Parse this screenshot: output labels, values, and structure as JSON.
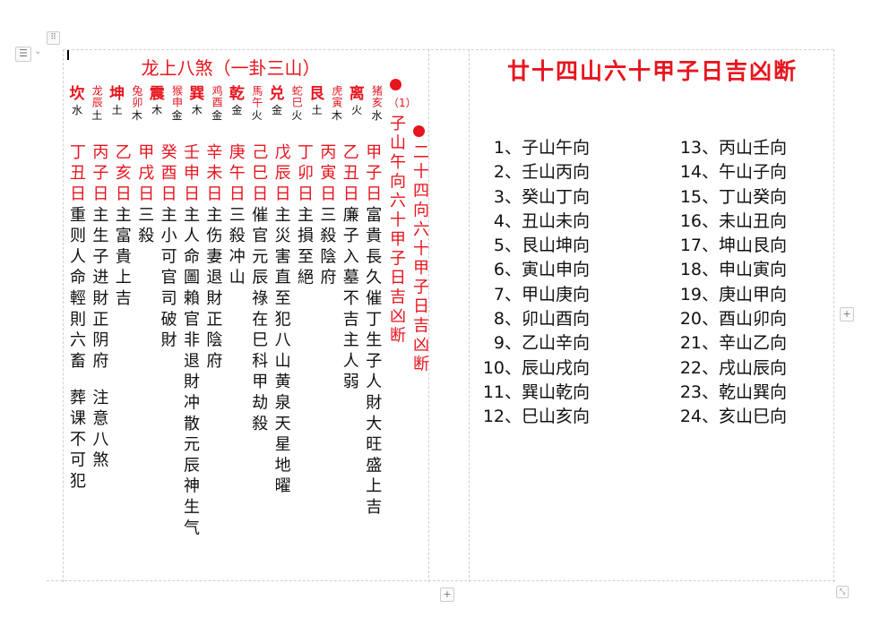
{
  "left_title": "龙上八煞（一卦三山）",
  "headers": [
    {
      "name": "坎",
      "element": "水",
      "big": true
    },
    {
      "name": "龙辰",
      "element": "土",
      "big": false
    },
    {
      "name": "坤",
      "element": "土",
      "big": true
    },
    {
      "name": "兔卯",
      "element": "木",
      "big": false
    },
    {
      "name": "震",
      "element": "木",
      "big": true
    },
    {
      "name": "猴申",
      "element": "金",
      "big": false
    },
    {
      "name": "巽",
      "element": "木",
      "big": true
    },
    {
      "name": "鸡酉",
      "element": "金",
      "big": false
    },
    {
      "name": "乾",
      "element": "金",
      "big": true
    },
    {
      "name": "馬午",
      "element": "火",
      "big": false
    },
    {
      "name": "兑",
      "element": "金",
      "big": true
    },
    {
      "name": "蛇巳",
      "element": "火",
      "big": false
    },
    {
      "name": "艮",
      "element": "土",
      "big": true
    },
    {
      "name": "虎寅",
      "element": "木",
      "big": false
    },
    {
      "name": "离",
      "element": "火",
      "big": true
    },
    {
      "name": "猪亥",
      "element": "水",
      "big": false
    }
  ],
  "day_columns": [
    {
      "day": "丁丑日",
      "text": "重则人命輕則六畜",
      "text2": "葬课不可犯"
    },
    {
      "day": "丙子日",
      "text": "主生子进財正阴府",
      "text2": "注意八煞"
    },
    {
      "day": "乙亥日",
      "text": "主富貴上吉"
    },
    {
      "day": "甲戌日",
      "text": "三殺"
    },
    {
      "day": "癸酉日",
      "text": "主小可官司破財"
    },
    {
      "day": "壬申日",
      "text": "主人命圖賴官非退財冲散元辰神生气"
    },
    {
      "day": "辛未日",
      "text": "主伤妻退財正陰府"
    },
    {
      "day": "庚午日",
      "text": "三殺冲山"
    },
    {
      "day": "己巳日",
      "text": "催官元辰祿在巳科甲劫殺"
    },
    {
      "day": "戊辰日",
      "text": "主災害直至犯八山黄泉天星地曜"
    },
    {
      "day": "丁卯日",
      "text": "主損至絕"
    },
    {
      "day": "丙寅日",
      "text": "三殺陰府"
    },
    {
      "day": "乙丑日",
      "text": "廉子入墓不吉主人弱"
    },
    {
      "day": "甲子日",
      "text": "富貴長久催丁生子人財大旺盛上吉"
    }
  ],
  "vertical_heading_1": {
    "index": "（1）",
    "text": "子山午向六十甲子日吉凶断"
  },
  "vertical_heading_2": {
    "text": "二十四向六十甲子日吉凶断"
  },
  "right_title": "廿十四山六十甲子日吉凶断",
  "directions": [
    "子山午向",
    "壬山丙向",
    "癸山丁向",
    "丑山未向",
    "艮山坤向",
    "寅山申向",
    "甲山庚向",
    "卯山酉向",
    "乙山辛向",
    "辰山戌向",
    "巽山乾向",
    "巳山亥向",
    "丙山壬向",
    "午山子向",
    "丁山癸向",
    "未山丑向",
    "坤山艮向",
    "申山寅向",
    "庚山甲向",
    "酉山卯向",
    "辛山乙向",
    "戌山辰向",
    "乾山巽向",
    "亥山巳向"
  ],
  "colors": {
    "accent": "#e8141e",
    "text": "#111111"
  }
}
